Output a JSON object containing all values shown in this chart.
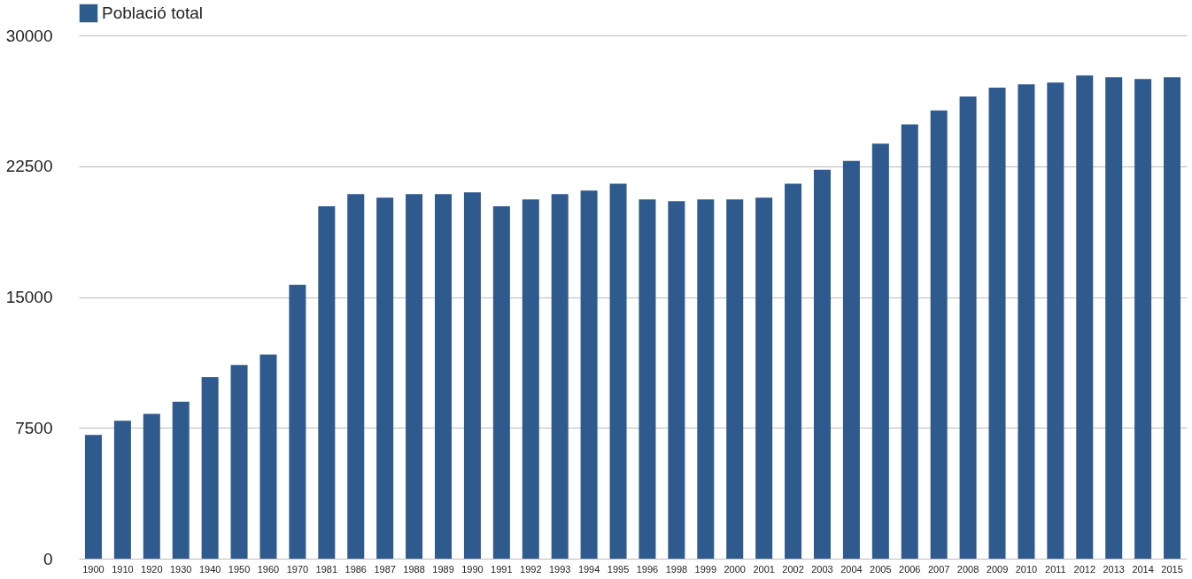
{
  "chart_data": {
    "type": "bar",
    "categories": [
      "1900",
      "1910",
      "1920",
      "1930",
      "1940",
      "1950",
      "1960",
      "1970",
      "1981",
      "1986",
      "1987",
      "1988",
      "1989",
      "1990",
      "1991",
      "1992",
      "1993",
      "1994",
      "1995",
      "1996",
      "1998",
      "1999",
      "2000",
      "2001",
      "2002",
      "2003",
      "2004",
      "2005",
      "2006",
      "2007",
      "2008",
      "2009",
      "2010",
      "2011",
      "2012",
      "2013",
      "2014",
      "2015"
    ],
    "series": [
      {
        "name": "Població total",
        "color": "#2f5a8d",
        "values": [
          7100,
          7900,
          8300,
          9000,
          10400,
          11100,
          11700,
          15700,
          20200,
          20900,
          20700,
          20900,
          20900,
          21000,
          20200,
          20600,
          20900,
          21100,
          21500,
          20600,
          20500,
          20600,
          20600,
          20700,
          21500,
          22300,
          22800,
          23800,
          24900,
          25700,
          26500,
          27000,
          27200,
          27300,
          27700,
          27600,
          27500,
          27600
        ]
      }
    ],
    "ylim": [
      0,
      30000
    ],
    "yticks": [
      0,
      7500,
      15000,
      22500,
      30000
    ],
    "grid": "y",
    "legend": "top"
  }
}
